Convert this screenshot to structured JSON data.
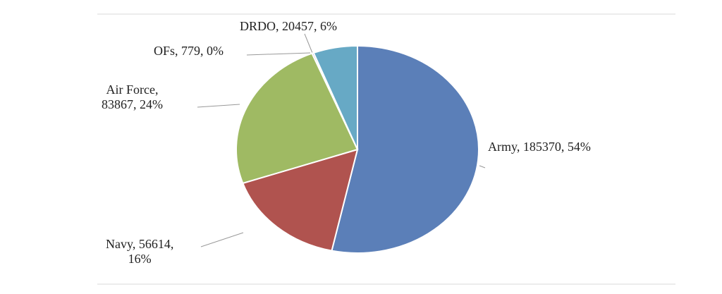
{
  "chart_data": {
    "type": "pie",
    "values": [
      185370,
      56614,
      83867,
      779,
      20457
    ],
    "value_labels": [
      "Army, 185370, 54%",
      "Navy, 56614,\n16%",
      "Air Force,\n83867, 24%",
      "OFs, 779, 0%",
      "DRDO, 20457, 6%"
    ],
    "colors": [
      "#5b7fb8",
      "#b0534f",
      "#9fba63",
      "#8064a2",
      "#67a9c5"
    ]
  }
}
